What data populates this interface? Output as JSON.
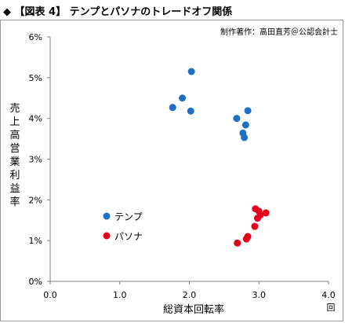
{
  "header": {
    "title": "◆ 【図表 4】 テンプとパソナのトレードオフ関係"
  },
  "chart_data": {
    "type": "scatter",
    "title": "",
    "credit": "制作著作：高田直芳＠公認会計士",
    "xlabel": "総資本回転率",
    "xunit": "回",
    "ylabel": "売上高営業利益率",
    "xlim": [
      0,
      4.0
    ],
    "ylim": [
      0,
      6
    ],
    "xticks": [
      "0.0",
      "1.0",
      "2.0",
      "3.0",
      "4.0"
    ],
    "yticks": [
      "0%",
      "1%",
      "2%",
      "3%",
      "4%",
      "5%",
      "6%"
    ],
    "grid": false,
    "legend_position": "left-lower",
    "series": [
      {
        "name": "テンプ",
        "color": "#1f6fc4",
        "points": [
          {
            "x": 2.03,
            "y": 5.15
          },
          {
            "x": 1.9,
            "y": 4.5
          },
          {
            "x": 1.76,
            "y": 4.27
          },
          {
            "x": 2.02,
            "y": 4.18
          },
          {
            "x": 2.84,
            "y": 4.19
          },
          {
            "x": 2.68,
            "y": 4.0
          },
          {
            "x": 2.81,
            "y": 3.84
          },
          {
            "x": 2.77,
            "y": 3.64
          },
          {
            "x": 2.79,
            "y": 3.53
          }
        ]
      },
      {
        "name": "パソナ",
        "color": "#e8001a",
        "points": [
          {
            "x": 2.95,
            "y": 1.78
          },
          {
            "x": 3.0,
            "y": 1.72
          },
          {
            "x": 3.1,
            "y": 1.68
          },
          {
            "x": 3.02,
            "y": 1.63
          },
          {
            "x": 2.98,
            "y": 1.55
          },
          {
            "x": 2.94,
            "y": 1.35
          },
          {
            "x": 2.84,
            "y": 1.1
          },
          {
            "x": 2.82,
            "y": 1.04
          },
          {
            "x": 2.69,
            "y": 0.94
          }
        ]
      }
    ]
  }
}
